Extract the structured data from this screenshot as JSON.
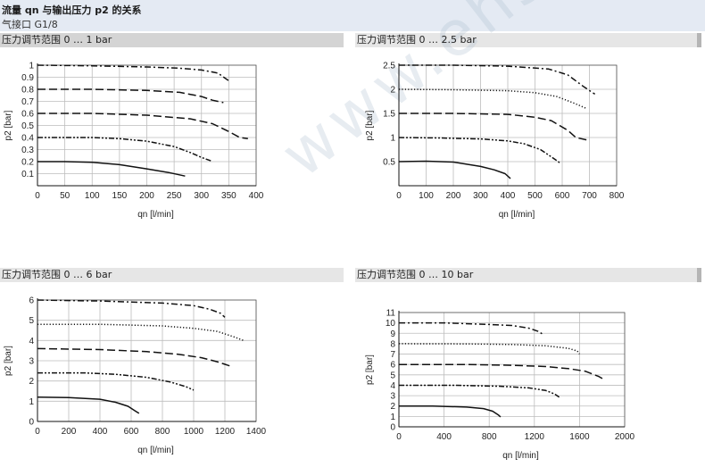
{
  "header": {
    "title": "流量 qn 与输出压力 p2 的关系",
    "subtitle": "气接口 G1/8"
  },
  "watermark": "www.ehsy.com",
  "chart_data": [
    {
      "type": "line",
      "panel_title": "压力调节范围 0 … 1 bar",
      "xlabel": "qn [l/min]",
      "ylabel": "p2 [bar]",
      "xlim": [
        0,
        400
      ],
      "ylim": [
        0,
        1
      ],
      "xticks": [
        0,
        50,
        100,
        150,
        200,
        250,
        300,
        350,
        400
      ],
      "yticks": [
        0.1,
        0.2,
        0.3,
        0.4,
        0.5,
        0.6,
        0.7,
        0.8,
        0.9,
        1
      ],
      "ytick_labels": [
        "0.1",
        "0.2",
        "0.3",
        "0.4",
        "0.5",
        "0.6",
        "0.7",
        "0.8",
        "0.9",
        "1"
      ],
      "grid": true,
      "series": [
        {
          "style": "dashdot",
          "x": [
            0,
            100,
            200,
            260,
            300,
            330,
            350
          ],
          "y": [
            1.0,
            0.995,
            0.985,
            0.975,
            0.96,
            0.935,
            0.87
          ]
        },
        {
          "style": "longdash",
          "x": [
            0,
            100,
            200,
            260,
            300,
            320,
            340
          ],
          "y": [
            0.8,
            0.8,
            0.79,
            0.775,
            0.74,
            0.71,
            0.69
          ]
        },
        {
          "style": "longdash",
          "x": [
            0,
            100,
            200,
            280,
            320,
            350,
            370,
            385
          ],
          "y": [
            0.6,
            0.6,
            0.585,
            0.555,
            0.515,
            0.45,
            0.4,
            0.39
          ]
        },
        {
          "style": "dashdotdot",
          "x": [
            0,
            100,
            150,
            200,
            250,
            280,
            300,
            318
          ],
          "y": [
            0.4,
            0.4,
            0.39,
            0.37,
            0.325,
            0.275,
            0.235,
            0.205
          ]
        },
        {
          "style": "solid",
          "x": [
            0,
            50,
            100,
            150,
            200,
            240,
            270
          ],
          "y": [
            0.2,
            0.2,
            0.195,
            0.175,
            0.14,
            0.11,
            0.08
          ]
        }
      ]
    },
    {
      "type": "line",
      "panel_title": "压力调节范围 0 … 2.5 bar",
      "xlabel": "qn [l/min]",
      "ylabel": "p2 [bar]",
      "xlim": [
        0,
        800
      ],
      "ylim": [
        0,
        2.5
      ],
      "xticks": [
        0,
        100,
        200,
        300,
        400,
        500,
        600,
        700,
        800
      ],
      "yticks": [
        0.5,
        1,
        1.5,
        2,
        2.5
      ],
      "ytick_labels": [
        "0.5",
        "1",
        "1.5",
        "2",
        "2.5"
      ],
      "grid": true,
      "series": [
        {
          "style": "dashdot",
          "x": [
            0,
            200,
            400,
            550,
            620,
            680,
            720
          ],
          "y": [
            2.5,
            2.5,
            2.48,
            2.42,
            2.3,
            2.05,
            1.9
          ]
        },
        {
          "style": "dotted",
          "x": [
            0,
            200,
            400,
            500,
            580,
            640,
            690
          ],
          "y": [
            2.0,
            1.99,
            1.97,
            1.93,
            1.85,
            1.72,
            1.6
          ]
        },
        {
          "style": "longdash",
          "x": [
            0,
            200,
            400,
            500,
            560,
            620,
            650,
            690
          ],
          "y": [
            1.5,
            1.5,
            1.48,
            1.42,
            1.35,
            1.15,
            1.0,
            0.95
          ]
        },
        {
          "style": "dashdotdot",
          "x": [
            0,
            150,
            300,
            400,
            460,
            520,
            560,
            590
          ],
          "y": [
            1.0,
            0.99,
            0.97,
            0.93,
            0.87,
            0.75,
            0.6,
            0.48
          ]
        },
        {
          "style": "solid",
          "x": [
            0,
            100,
            200,
            300,
            350,
            390,
            410
          ],
          "y": [
            0.5,
            0.51,
            0.49,
            0.4,
            0.33,
            0.25,
            0.15
          ]
        }
      ]
    },
    {
      "type": "line",
      "panel_title": "压力调节范围 0 … 6 bar",
      "xlabel": "qn [l/min]",
      "ylabel": "p2 [bar]",
      "xlim": [
        0,
        1400
      ],
      "ylim": [
        0,
        6
      ],
      "xticks": [
        0,
        200,
        400,
        600,
        800,
        1000,
        1200,
        1400
      ],
      "yticks": [
        0,
        1,
        2,
        3,
        4,
        5,
        6
      ],
      "ytick_labels": [
        "0",
        "1",
        "2",
        "3",
        "4",
        "5",
        "6"
      ],
      "grid": true,
      "series": [
        {
          "style": "dashdot",
          "x": [
            0,
            400,
            800,
            1000,
            1100,
            1170,
            1200
          ],
          "y": [
            6.0,
            5.95,
            5.85,
            5.72,
            5.55,
            5.35,
            5.15
          ]
        },
        {
          "style": "dotted",
          "x": [
            0,
            400,
            800,
            1000,
            1150,
            1250,
            1320
          ],
          "y": [
            4.8,
            4.8,
            4.72,
            4.6,
            4.45,
            4.2,
            4.0
          ]
        },
        {
          "style": "longdash",
          "x": [
            0,
            400,
            700,
            900,
            1050,
            1150,
            1230
          ],
          "y": [
            3.6,
            3.55,
            3.45,
            3.32,
            3.15,
            2.95,
            2.75
          ]
        },
        {
          "style": "dashdotdot",
          "x": [
            0,
            300,
            500,
            700,
            850,
            950,
            1000
          ],
          "y": [
            2.4,
            2.4,
            2.33,
            2.18,
            1.95,
            1.72,
            1.55
          ]
        },
        {
          "style": "solid",
          "x": [
            0,
            200,
            400,
            500,
            580,
            630,
            650
          ],
          "y": [
            1.2,
            1.18,
            1.1,
            0.95,
            0.75,
            0.5,
            0.4
          ]
        }
      ]
    },
    {
      "type": "line",
      "panel_title": "压力调节范围 0 … 10 bar",
      "xlabel": "qn [l/min]",
      "ylabel": "p2 [bar]",
      "xlim": [
        0,
        2000
      ],
      "ylim": [
        0,
        11
      ],
      "xticks": [
        0,
        400,
        800,
        1200,
        1600,
        2000
      ],
      "yticks": [
        0,
        1,
        2,
        3,
        4,
        5,
        6,
        7,
        8,
        9,
        10,
        11
      ],
      "ytick_labels": [
        "0",
        "1",
        "2",
        "3",
        "4",
        "5",
        "6",
        "7",
        "8",
        "9",
        "10",
        "11"
      ],
      "grid": true,
      "series": [
        {
          "style": "dashdot",
          "x": [
            0,
            400,
            800,
            1000,
            1150,
            1230,
            1270
          ],
          "y": [
            10.0,
            10.0,
            9.85,
            9.75,
            9.5,
            9.2,
            8.95
          ]
        },
        {
          "style": "dotted",
          "x": [
            0,
            600,
            1000,
            1300,
            1500,
            1580,
            1600
          ],
          "y": [
            8.0,
            7.98,
            7.92,
            7.8,
            7.55,
            7.3,
            7.0
          ]
        },
        {
          "style": "longdash",
          "x": [
            0,
            600,
            1000,
            1300,
            1500,
            1650,
            1770,
            1810
          ],
          "y": [
            6.0,
            6.0,
            5.92,
            5.8,
            5.6,
            5.35,
            4.85,
            4.6
          ]
        },
        {
          "style": "dashdotdot",
          "x": [
            0,
            500,
            900,
            1150,
            1300,
            1380,
            1420
          ],
          "y": [
            4.0,
            4.0,
            3.9,
            3.75,
            3.5,
            3.15,
            2.85
          ]
        },
        {
          "style": "solid",
          "x": [
            0,
            300,
            600,
            750,
            830,
            880,
            900
          ],
          "y": [
            2.0,
            2.0,
            1.9,
            1.75,
            1.5,
            1.15,
            0.95
          ]
        }
      ]
    }
  ]
}
